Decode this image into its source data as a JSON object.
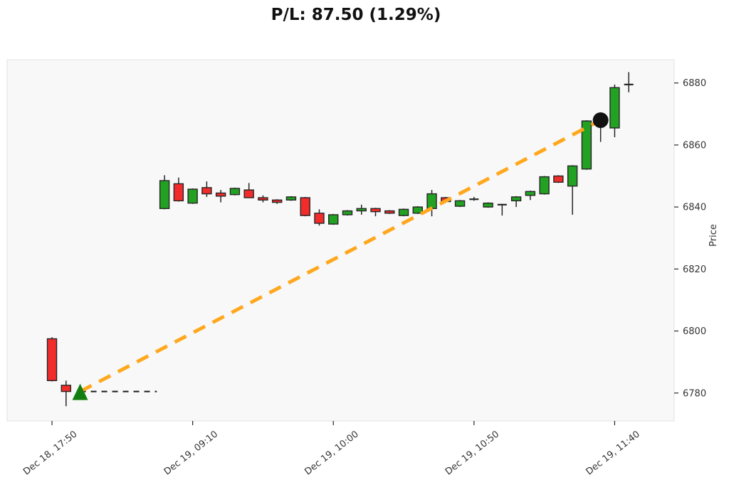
{
  "title": "P/L: 87.50 (1.29%)",
  "colors": {
    "up_candle": "#22a122",
    "down_candle": "#f22b2b",
    "candle_edge": "#262626",
    "wick": "#262626",
    "trade_line_orange": "#ffa81e",
    "entry_line_black": "#1a1a1a",
    "entry_triangle_green": "#127e12",
    "exit_dot_black": "#111111",
    "plot_background": "#f8f8f8",
    "plot_border": "#e2e2e2",
    "tick_text": "#333333"
  },
  "chart_data": {
    "type": "candlestick",
    "title": "P/L: 87.50 (1.29%)",
    "xlabel": "",
    "ylabel": "Price",
    "grid": false,
    "legend": null,
    "ylim": [
      6771,
      6887.5
    ],
    "x_index_range": [
      -3.19,
      44.23
    ],
    "y_ticks": [
      {
        "value": 6880,
        "label": "6880"
      },
      {
        "value": 6860,
        "label": "6860"
      },
      {
        "value": 6840,
        "label": "6840"
      },
      {
        "value": 6820,
        "label": "6820"
      },
      {
        "value": 6800,
        "label": "6800"
      },
      {
        "value": 6780,
        "label": "6780"
      }
    ],
    "x_ticks": [
      {
        "index": 0,
        "label": "Dec 18, 17:50"
      },
      {
        "index": 10,
        "label": "Dec 19, 09:10"
      },
      {
        "index": 20,
        "label": "Dec 19, 10:00"
      },
      {
        "index": 30,
        "label": "Dec 19, 10:50"
      },
      {
        "index": 40,
        "label": "Dec 19, 11:40"
      }
    ],
    "candles": [
      {
        "i": 0,
        "time": "Dec 18, 17:50",
        "o": 6797.5,
        "h": 6798.0,
        "l": 6783.75,
        "c": 6784.0
      },
      {
        "i": 1,
        "time": "Dec 18, 17:55",
        "o": 6782.5,
        "h": 6784.0,
        "l": 6775.75,
        "c": 6780.5
      },
      {
        "i": 8,
        "time": "Dec 19, 09:00",
        "o": 6839.5,
        "h": 6850.25,
        "l": 6839.25,
        "c": 6848.5
      },
      {
        "i": 9,
        "time": "Dec 19, 09:05",
        "o": 6847.5,
        "h": 6849.5,
        "l": 6841.75,
        "c": 6842.0
      },
      {
        "i": 10,
        "time": "Dec 19, 09:10",
        "o": 6841.25,
        "h": 6846.0,
        "l": 6841.0,
        "c": 6845.75
      },
      {
        "i": 11,
        "time": "Dec 19, 09:15",
        "o": 6846.25,
        "h": 6848.25,
        "l": 6843.25,
        "c": 6844.25
      },
      {
        "i": 12,
        "time": "Dec 19, 09:20",
        "o": 6844.5,
        "h": 6845.5,
        "l": 6841.5,
        "c": 6843.5
      },
      {
        "i": 13,
        "time": "Dec 19, 09:25",
        "o": 6844.0,
        "h": 6846.25,
        "l": 6843.75,
        "c": 6846.0
      },
      {
        "i": 14,
        "time": "Dec 19, 09:30",
        "o": 6845.5,
        "h": 6847.75,
        "l": 6843.0,
        "c": 6843.0
      },
      {
        "i": 15,
        "time": "Dec 19, 09:35",
        "o": 6843.0,
        "h": 6843.75,
        "l": 6841.5,
        "c": 6842.25
      },
      {
        "i": 16,
        "time": "Dec 19, 09:40",
        "o": 6842.25,
        "h": 6842.5,
        "l": 6841.0,
        "c": 6841.5
      },
      {
        "i": 17,
        "time": "Dec 19, 09:45",
        "o": 6842.25,
        "h": 6843.5,
        "l": 6842.0,
        "c": 6843.25
      },
      {
        "i": 18,
        "time": "Dec 19, 09:50",
        "o": 6843.0,
        "h": 6843.25,
        "l": 6837.0,
        "c": 6837.25
      },
      {
        "i": 19,
        "time": "Dec 19, 09:55",
        "o": 6838.0,
        "h": 6839.25,
        "l": 6834.0,
        "c": 6834.75
      },
      {
        "i": 20,
        "time": "Dec 19, 10:00",
        "o": 6834.5,
        "h": 6837.75,
        "l": 6834.25,
        "c": 6837.5
      },
      {
        "i": 21,
        "time": "Dec 19, 10:05",
        "o": 6837.5,
        "h": 6839.0,
        "l": 6837.25,
        "c": 6838.75
      },
      {
        "i": 22,
        "time": "Dec 19, 10:10",
        "o": 6838.75,
        "h": 6840.75,
        "l": 6837.5,
        "c": 6839.5
      },
      {
        "i": 23,
        "time": "Dec 19, 10:15",
        "o": 6839.5,
        "h": 6839.75,
        "l": 6837.0,
        "c": 6838.5
      },
      {
        "i": 24,
        "time": "Dec 19, 10:20",
        "o": 6838.75,
        "h": 6839.0,
        "l": 6837.75,
        "c": 6838.0
      },
      {
        "i": 25,
        "time": "Dec 19, 10:25",
        "o": 6837.25,
        "h": 6839.5,
        "l": 6837.0,
        "c": 6839.25
      },
      {
        "i": 26,
        "time": "Dec 19, 10:30",
        "o": 6838.0,
        "h": 6840.25,
        "l": 6837.75,
        "c": 6840.0
      },
      {
        "i": 27,
        "time": "Dec 19, 10:35",
        "o": 6839.5,
        "h": 6845.5,
        "l": 6837.0,
        "c": 6844.25
      },
      {
        "i": 28,
        "time": "Dec 19, 10:40",
        "o": 6843.0,
        "h": 6843.25,
        "l": 6841.5,
        "c": 6841.75
      },
      {
        "i": 29,
        "time": "Dec 19, 10:45",
        "o": 6840.25,
        "h": 6842.25,
        "l": 6840.0,
        "c": 6842.0
      },
      {
        "i": 30,
        "time": "Dec 19, 10:50",
        "o": 6842.5,
        "h": 6843.25,
        "l": 6842.0,
        "c": 6842.5
      },
      {
        "i": 31,
        "time": "Dec 19, 10:55",
        "o": 6840.0,
        "h": 6841.5,
        "l": 6839.75,
        "c": 6841.25
      },
      {
        "i": 32,
        "time": "Dec 19, 11:00",
        "o": 6840.75,
        "h": 6841.0,
        "l": 6837.25,
        "c": 6840.75
      },
      {
        "i": 33,
        "time": "Dec 19, 11:05",
        "o": 6842.0,
        "h": 6843.5,
        "l": 6840.0,
        "c": 6843.25
      },
      {
        "i": 34,
        "time": "Dec 19, 11:10",
        "o": 6843.75,
        "h": 6845.25,
        "l": 6842.25,
        "c": 6845.0
      },
      {
        "i": 35,
        "time": "Dec 19, 11:15",
        "o": 6844.25,
        "h": 6850.0,
        "l": 6844.0,
        "c": 6849.75
      },
      {
        "i": 36,
        "time": "Dec 19, 11:20",
        "o": 6850.0,
        "h": 6850.25,
        "l": 6847.75,
        "c": 6848.0
      },
      {
        "i": 37,
        "time": "Dec 19, 11:25",
        "o": 6846.75,
        "h": 6853.5,
        "l": 6837.5,
        "c": 6853.25
      },
      {
        "i": 38,
        "time": "Dec 19, 11:30",
        "o": 6852.25,
        "h": 6868.0,
        "l": 6852.0,
        "c": 6867.75
      },
      {
        "i": 39,
        "time": "Dec 19, 11:35",
        "o": 6867.0,
        "h": 6869.0,
        "l": 6861.0,
        "c": 6867.5
      },
      {
        "i": 40,
        "time": "Dec 19, 11:40",
        "o": 6865.5,
        "h": 6879.5,
        "l": 6862.5,
        "c": 6878.5
      },
      {
        "i": 41,
        "time": "Dec 19, 11:45",
        "o": 6879.5,
        "h": 6883.5,
        "l": 6877.0,
        "c": 6879.5
      }
    ],
    "trade": {
      "pl": 87.5,
      "pl_pct": 1.29,
      "entry": {
        "index": 2,
        "price": 6780.5
      },
      "exit": {
        "index": 39,
        "price": 6868.0
      },
      "entry_line": {
        "from_index": 2,
        "to_index": 7.45,
        "price": 6780.5
      }
    }
  }
}
